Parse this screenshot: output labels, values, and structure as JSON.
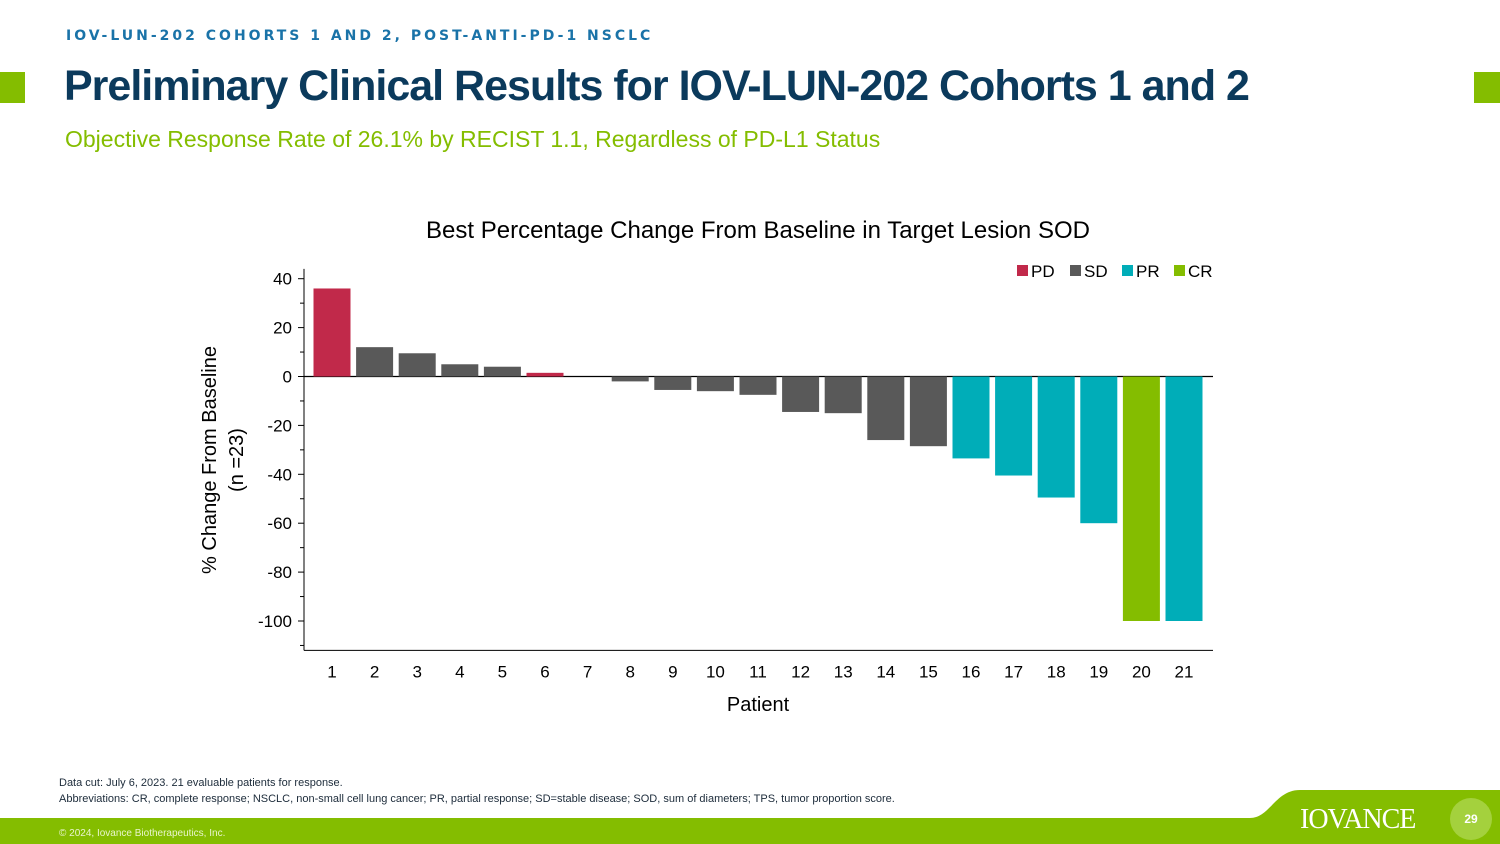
{
  "header": {
    "eyebrow": "IOV-LUN-202 COHORTS 1 AND 2, POST-ANTI-PD-1 NSCLC",
    "title": "Preliminary Clinical Results for IOV-LUN-202 Cohorts 1 and 2",
    "subtitle": "Objective Response Rate of 26.1% by RECIST 1.1, Regardless of PD-L1 Status"
  },
  "colors": {
    "PD": "#c1294a",
    "SD": "#595959",
    "PR": "#00adb8",
    "CR": "#84bd00",
    "brand_green": "#84bd00",
    "brand_navy": "#0b3a5c"
  },
  "chart_data": {
    "type": "bar",
    "title": "Best Percentage Change From Baseline in Target Lesion SOD",
    "xlabel": "Patient",
    "ylabel": "% Change From Baseline",
    "ylabel_sub": "(n =23)",
    "ylim": [
      -112,
      44
    ],
    "yticks": [
      40,
      20,
      0,
      -20,
      -40,
      -60,
      -80,
      -100
    ],
    "ytick_labels": [
      "40",
      "20",
      "0",
      "-20",
      "-40",
      "-60",
      "-80",
      "-100"
    ],
    "grid": false,
    "legend": {
      "position": "top-right",
      "entries": [
        {
          "label": "PD",
          "category": "PD"
        },
        {
          "label": "SD",
          "category": "SD"
        },
        {
          "label": "PR",
          "category": "PR"
        },
        {
          "label": "CR",
          "category": "CR"
        }
      ]
    },
    "categories": [
      "1",
      "2",
      "3",
      "4",
      "5",
      "6",
      "7",
      "8",
      "9",
      "10",
      "11",
      "12",
      "13",
      "14",
      "15",
      "16",
      "17",
      "18",
      "19",
      "20",
      "21"
    ],
    "values": [
      36,
      12,
      9.5,
      5,
      4,
      1.5,
      0,
      -2,
      -5.5,
      -6,
      -7.5,
      -14.5,
      -15,
      -26,
      -28.5,
      -33.5,
      -40.5,
      -49.5,
      -60,
      -100,
      -100
    ],
    "response": [
      "PD",
      "SD",
      "SD",
      "SD",
      "SD",
      "PD",
      "SD",
      "SD",
      "SD",
      "SD",
      "SD",
      "SD",
      "SD",
      "SD",
      "SD",
      "PR",
      "PR",
      "PR",
      "PR",
      "CR",
      "PR"
    ]
  },
  "footnotes": {
    "line1": "Data cut: July 6, 2023. 21 evaluable patients for response.",
    "line2": "Abbreviations: CR, complete response; NSCLC, non-small cell lung cancer; PR, partial response; SD=stable disease; SOD, sum of diameters; TPS, tumor proportion score."
  },
  "footer": {
    "copyright": "© 2024, Iovance Biotherapeutics, Inc.",
    "logo": "IOVANCE",
    "page_number": "29"
  }
}
